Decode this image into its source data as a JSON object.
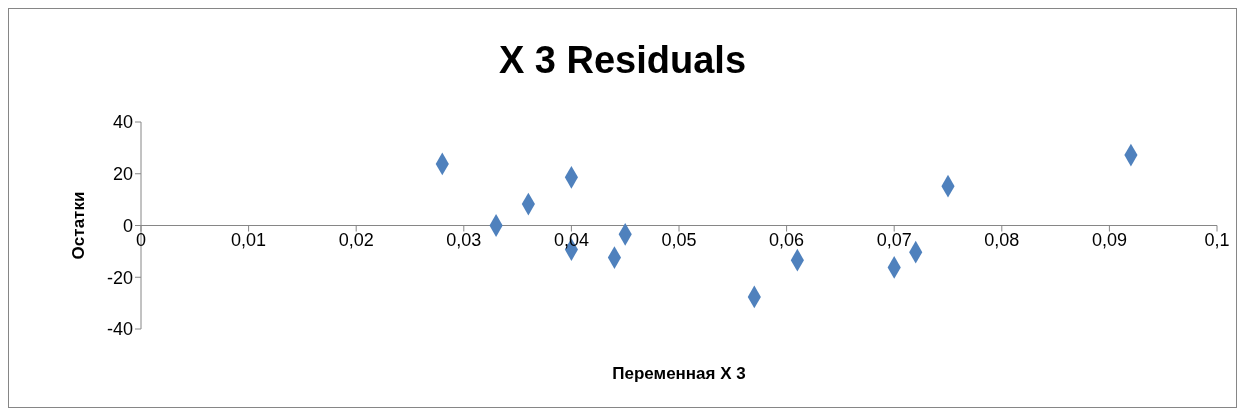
{
  "chart_data": {
    "type": "scatter",
    "title": "X 3 Residuals",
    "xlabel": "Переменная X 3",
    "ylabel": "Остатки",
    "x": [
      0.028,
      0.033,
      0.036,
      0.04,
      0.04,
      0.044,
      0.045,
      0.057,
      0.061,
      0.07,
      0.072,
      0.075,
      0.092
    ],
    "series": [
      {
        "color": "#4f81bd",
        "values": [
          23.8,
          0,
          8.3,
          18.6,
          -9.3,
          -12.4,
          -3.4,
          -27.6,
          -13.4,
          -16.2,
          -10.3,
          15.2,
          27.2
        ]
      }
    ],
    "xlim": [
      0,
      0.1
    ],
    "xticks": [
      {
        "value": 0,
        "label": "0"
      },
      {
        "value": 0.01,
        "label": "0,01"
      },
      {
        "value": 0.02,
        "label": "0,02"
      },
      {
        "value": 0.03,
        "label": "0,03"
      },
      {
        "value": 0.04,
        "label": "0,04"
      },
      {
        "value": 0.05,
        "label": "0,05"
      },
      {
        "value": 0.06,
        "label": "0,06"
      },
      {
        "value": 0.07,
        "label": "0,07"
      },
      {
        "value": 0.08,
        "label": "0,08"
      },
      {
        "value": 0.09,
        "label": "0,09"
      },
      {
        "value": 0.1,
        "label": "0,1"
      }
    ],
    "ylim": [
      -40,
      40
    ],
    "yticks": [
      -40,
      -20,
      0,
      20,
      40
    ],
    "grid": false,
    "legend": false,
    "marker": "diamond"
  }
}
